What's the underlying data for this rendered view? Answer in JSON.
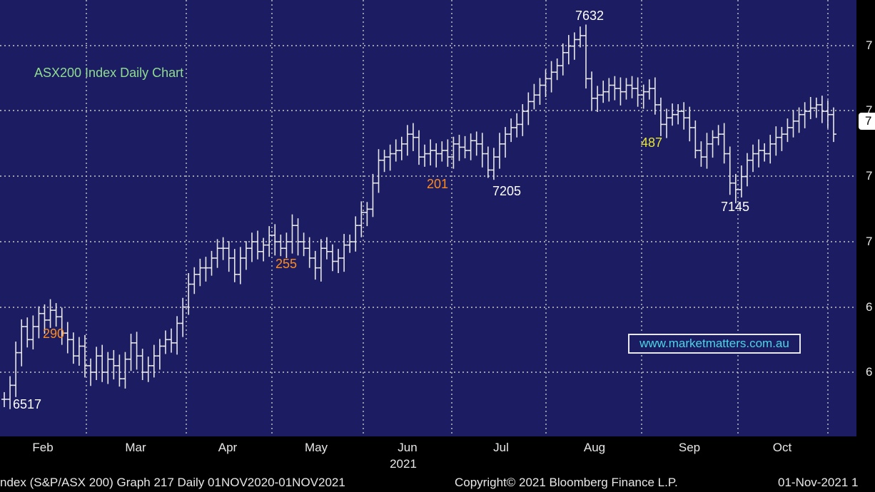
{
  "chart_data": {
    "type": "ohlc",
    "title": "ASX200 Index Daily Chart",
    "x_tick_labels": [
      "Feb",
      "Mar",
      "Apr",
      "May",
      "Jun",
      "Jul",
      "Aug",
      "Sep",
      "Oct"
    ],
    "year_label": "2021",
    "y_tick_labels": [
      "7",
      "7",
      "7",
      "7",
      "6",
      "6"
    ],
    "grid": true,
    "annotations": [
      {
        "text": "6517",
        "color": "#ffffff"
      },
      {
        "text": "290",
        "color": "#ff8c1a"
      },
      {
        "text": "255",
        "color": "#ff8c1a"
      },
      {
        "text": "201",
        "color": "#ff8c1a"
      },
      {
        "text": "7205",
        "color": "#ffffff"
      },
      {
        "text": "7632",
        "color": "#ffffff"
      },
      {
        "text": "487",
        "color": "#e6e62e"
      },
      {
        "text": "7145",
        "color": "#ffffff"
      }
    ],
    "last_price_label": "7",
    "colors": {
      "background": "#1c1c63",
      "bars": "#e8e8e8",
      "grid": "#c8c8c8",
      "title": "#8fdc8f",
      "watermark": "#49d6e6"
    },
    "close_levels": [
      6517,
      6560,
      6660,
      6740,
      6700,
      6740,
      6780,
      6760,
      6790,
      6770,
      6720,
      6700,
      6650,
      6680,
      6620,
      6600,
      6650,
      6600,
      6640,
      6620,
      6580,
      6640,
      6690,
      6650,
      6600,
      6620,
      6650,
      6680,
      6700,
      6690,
      6750,
      6800,
      6870,
      6900,
      6920,
      6920,
      6950,
      6980,
      6980,
      6950,
      6900,
      6950,
      6980,
      7000,
      6970,
      6990,
      7020,
      7000,
      6980,
      7000,
      7050,
      7000,
      6980,
      6950,
      6920,
      6980,
      6970,
      6940,
      6950,
      6990,
      7000,
      7050,
      7090,
      7100,
      7180,
      7250,
      7260,
      7270,
      7280,
      7300,
      7330,
      7320,
      7260,
      7270,
      7280,
      7270,
      7280,
      7260,
      7300,
      7290,
      7280,
      7310,
      7300,
      7270,
      7220,
      7260,
      7300,
      7330,
      7350,
      7360,
      7400,
      7430,
      7450,
      7480,
      7500,
      7520,
      7540,
      7580,
      7600,
      7620,
      7632,
      7500,
      7440,
      7450,
      7460,
      7480,
      7470,
      7460,
      7480,
      7470,
      7450,
      7460,
      7470,
      7420,
      7360,
      7380,
      7390,
      7400,
      7380,
      7350,
      7280,
      7260,
      7300,
      7320,
      7330,
      7270,
      7180,
      7160,
      7200,
      7250,
      7270,
      7280,
      7270,
      7300,
      7320,
      7330,
      7350,
      7370,
      7390,
      7400,
      7410,
      7420,
      7400,
      7390,
      7330
    ]
  },
  "footer": {
    "left": "ndex (S&P/ASX 200) Graph 217  Daily 01NOV2020-01NOV2021",
    "center": "Copyright© 2021 Bloomberg Finance L.P.",
    "right": "01-Nov-2021 1"
  },
  "watermark": "www.marketmatters.com.au"
}
